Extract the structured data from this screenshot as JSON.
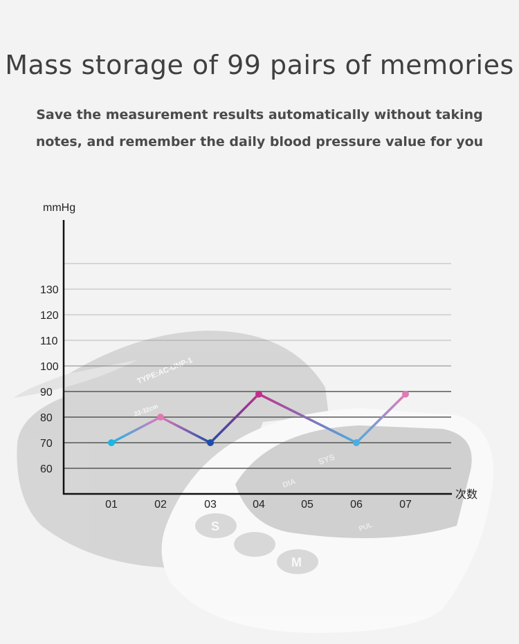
{
  "header": {
    "title": "Mass storage of 99 pairs of memories",
    "subtitle_line1": "Save the measurement results automatically without taking",
    "subtitle_line2": "notes, and remember the daily blood pressure value for you"
  },
  "chart_data": {
    "type": "line",
    "ylabel": "mmHg",
    "xlabel": "次数",
    "categories": [
      "01",
      "02",
      "03",
      "04",
      "05",
      "06",
      "07"
    ],
    "yticks": [
      60,
      70,
      80,
      90,
      100,
      110,
      120,
      130
    ],
    "ylim": [
      50,
      155
    ],
    "grid": true,
    "points": [
      {
        "x": "01",
        "y": 70,
        "color": "#1ab6e6"
      },
      {
        "x": "02",
        "y": 80,
        "color": "#e07ab6"
      },
      {
        "x": "03",
        "y": 70,
        "color": "#1e4ea8"
      },
      {
        "x": "04",
        "y": 89,
        "color": "#c0308a"
      },
      {
        "x": "06",
        "y": 70,
        "color": "#4aaee0"
      },
      {
        "x": "07",
        "y": 89,
        "color": "#e07ab6"
      }
    ]
  },
  "background": {
    "device_labels": [
      "SYS",
      "DIA",
      "PUL",
      "S",
      "M",
      "TYPE:AC-UNP-1",
      "22-32cm"
    ]
  }
}
